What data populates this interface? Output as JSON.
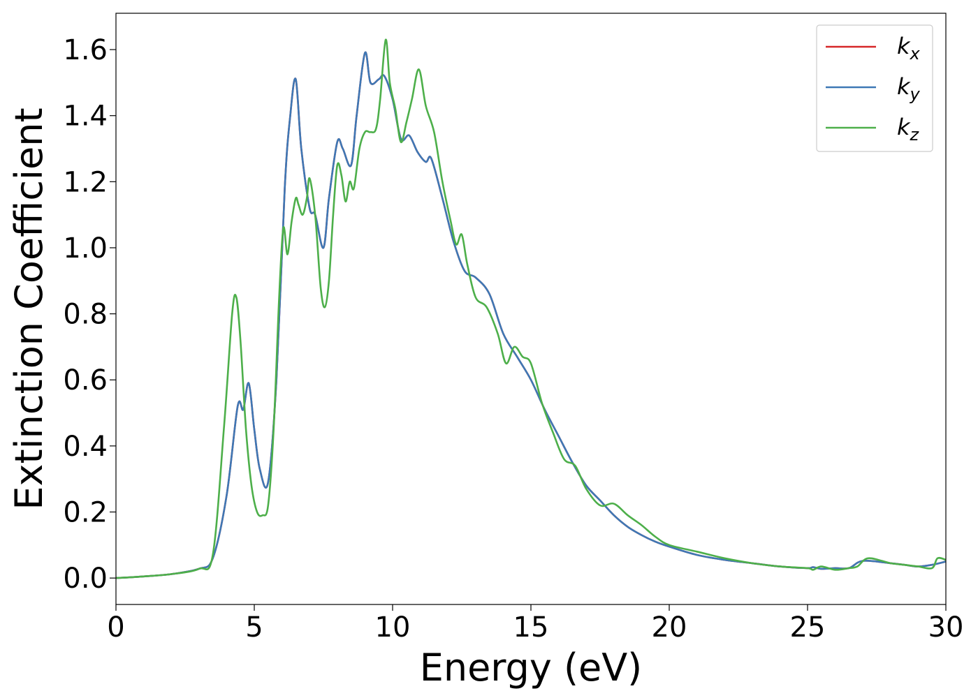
{
  "chart_data": {
    "type": "line",
    "title": "",
    "xlabel": "Energy (eV)",
    "ylabel": "Extinction Coefficient",
    "xlim": [
      0,
      30
    ],
    "ylim": [
      -0.08,
      1.71
    ],
    "xticks": [
      0,
      5,
      10,
      15,
      20,
      25,
      30
    ],
    "yticks": [
      0.0,
      0.2,
      0.4,
      0.6,
      0.8,
      1.0,
      1.2,
      1.4,
      1.6
    ],
    "grid": false,
    "legend_position": "top-right",
    "series": [
      {
        "name": "k",
        "subscript": "x",
        "color": "#d62728",
        "x": [
          0,
          1,
          2,
          3,
          3.5,
          4.0,
          4.4,
          4.6,
          4.8,
          5.0,
          5.2,
          5.5,
          5.8,
          6.1,
          6.3,
          6.5,
          6.7,
          7.0,
          7.2,
          7.5,
          7.7,
          8.0,
          8.2,
          8.5,
          8.7,
          9.0,
          9.2,
          9.5,
          9.7,
          10.0,
          10.3,
          10.6,
          10.9,
          11.2,
          11.4,
          11.8,
          12.2,
          12.6,
          13.0,
          13.5,
          14.0,
          14.5,
          15.0,
          15.5,
          16.0,
          16.5,
          17.0,
          17.5,
          18.0,
          18.5,
          19.0,
          19.5,
          20,
          21,
          22,
          23,
          24,
          25,
          25.2,
          25.5,
          26,
          26.5,
          27,
          28,
          28.5,
          29,
          29.5,
          30
        ],
        "values": [
          0,
          0.005,
          0.012,
          0.028,
          0.06,
          0.25,
          0.52,
          0.51,
          0.59,
          0.45,
          0.33,
          0.29,
          0.6,
          1.18,
          1.4,
          1.51,
          1.3,
          1.12,
          1.1,
          1.0,
          1.15,
          1.32,
          1.3,
          1.25,
          1.4,
          1.59,
          1.5,
          1.51,
          1.52,
          1.45,
          1.33,
          1.34,
          1.29,
          1.26,
          1.27,
          1.15,
          1.02,
          0.93,
          0.91,
          0.86,
          0.74,
          0.67,
          0.6,
          0.51,
          0.43,
          0.35,
          0.28,
          0.235,
          0.19,
          0.155,
          0.13,
          0.11,
          0.095,
          0.07,
          0.055,
          0.045,
          0.035,
          0.03,
          0.033,
          0.028,
          0.03,
          0.03,
          0.052,
          0.045,
          0.04,
          0.035,
          0.04,
          0.05
        ]
      },
      {
        "name": "k",
        "subscript": "y",
        "color": "#3e78b5",
        "x": [
          0,
          1,
          2,
          3,
          3.5,
          4.0,
          4.4,
          4.6,
          4.8,
          5.0,
          5.2,
          5.5,
          5.8,
          6.1,
          6.3,
          6.5,
          6.7,
          7.0,
          7.2,
          7.5,
          7.7,
          8.0,
          8.2,
          8.5,
          8.7,
          9.0,
          9.2,
          9.5,
          9.7,
          10.0,
          10.3,
          10.6,
          10.9,
          11.2,
          11.4,
          11.8,
          12.2,
          12.6,
          13.0,
          13.5,
          14.0,
          14.5,
          15.0,
          15.5,
          16.0,
          16.5,
          17.0,
          17.5,
          18.0,
          18.5,
          19.0,
          19.5,
          20,
          21,
          22,
          23,
          24,
          25,
          25.2,
          25.5,
          26,
          26.5,
          27,
          28,
          28.5,
          29,
          29.5,
          30
        ],
        "values": [
          0,
          0.005,
          0.012,
          0.028,
          0.06,
          0.25,
          0.52,
          0.51,
          0.59,
          0.45,
          0.33,
          0.29,
          0.6,
          1.18,
          1.4,
          1.51,
          1.3,
          1.12,
          1.1,
          1.0,
          1.15,
          1.32,
          1.3,
          1.25,
          1.4,
          1.59,
          1.5,
          1.51,
          1.52,
          1.45,
          1.33,
          1.34,
          1.29,
          1.26,
          1.27,
          1.15,
          1.02,
          0.93,
          0.91,
          0.86,
          0.74,
          0.67,
          0.6,
          0.51,
          0.43,
          0.35,
          0.28,
          0.235,
          0.19,
          0.155,
          0.13,
          0.11,
          0.095,
          0.07,
          0.055,
          0.045,
          0.035,
          0.03,
          0.033,
          0.028,
          0.03,
          0.03,
          0.052,
          0.045,
          0.04,
          0.035,
          0.04,
          0.05
        ]
      },
      {
        "name": "k",
        "subscript": "z",
        "color": "#4daf4a",
        "x": [
          0,
          1,
          2,
          3,
          3.5,
          3.9,
          4.2,
          4.35,
          4.5,
          4.7,
          4.9,
          5.1,
          5.3,
          5.5,
          5.7,
          5.9,
          6.05,
          6.2,
          6.35,
          6.5,
          6.6,
          6.75,
          6.9,
          7.0,
          7.2,
          7.4,
          7.55,
          7.7,
          7.85,
          8.0,
          8.15,
          8.3,
          8.45,
          8.6,
          8.8,
          9.0,
          9.2,
          9.4,
          9.55,
          9.75,
          9.9,
          10.1,
          10.3,
          10.5,
          10.7,
          10.95,
          11.2,
          11.5,
          11.8,
          12.1,
          12.3,
          12.5,
          12.7,
          13.0,
          13.4,
          13.8,
          14.1,
          14.4,
          14.7,
          15.0,
          15.4,
          15.8,
          16.2,
          16.6,
          17.0,
          17.5,
          18.0,
          18.5,
          19.0,
          19.5,
          20,
          21,
          22,
          23,
          24,
          25,
          25.2,
          25.5,
          26,
          26.5,
          26.8,
          27.2,
          28,
          28.5,
          29,
          29.5,
          29.7,
          30
        ],
        "values": [
          0,
          0.005,
          0.012,
          0.028,
          0.07,
          0.45,
          0.8,
          0.85,
          0.72,
          0.45,
          0.28,
          0.2,
          0.19,
          0.22,
          0.45,
          0.85,
          1.06,
          0.98,
          1.08,
          1.15,
          1.13,
          1.1,
          1.15,
          1.21,
          1.1,
          0.88,
          0.82,
          0.9,
          1.1,
          1.25,
          1.22,
          1.14,
          1.2,
          1.18,
          1.3,
          1.35,
          1.35,
          1.36,
          1.45,
          1.63,
          1.5,
          1.42,
          1.32,
          1.38,
          1.45,
          1.54,
          1.43,
          1.35,
          1.2,
          1.08,
          1.01,
          1.04,
          0.95,
          0.85,
          0.82,
          0.74,
          0.65,
          0.7,
          0.67,
          0.65,
          0.53,
          0.44,
          0.36,
          0.34,
          0.27,
          0.22,
          0.225,
          0.19,
          0.16,
          0.125,
          0.1,
          0.08,
          0.06,
          0.045,
          0.035,
          0.03,
          0.025,
          0.035,
          0.025,
          0.03,
          0.035,
          0.06,
          0.045,
          0.04,
          0.035,
          0.03,
          0.06,
          0.055
        ]
      }
    ]
  }
}
